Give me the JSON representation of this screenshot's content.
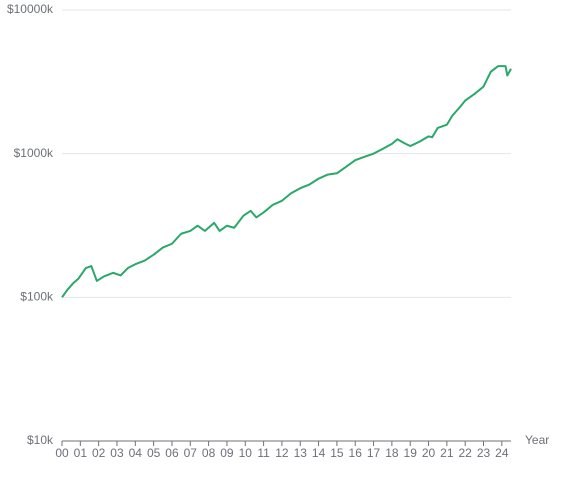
{
  "chart_data": {
    "type": "line",
    "x_label": "Year",
    "log_scale": true,
    "grid": true,
    "color": "#2aa86a",
    "xlim": [
      0,
      24.5
    ],
    "xticks": [
      {
        "value": 0,
        "label": "00"
      },
      {
        "value": 1,
        "label": "01"
      },
      {
        "value": 2,
        "label": "02"
      },
      {
        "value": 3,
        "label": "03"
      },
      {
        "value": 4,
        "label": "04"
      },
      {
        "value": 5,
        "label": "05"
      },
      {
        "value": 6,
        "label": "06"
      },
      {
        "value": 7,
        "label": "07"
      },
      {
        "value": 8,
        "label": "08"
      },
      {
        "value": 9,
        "label": "09"
      },
      {
        "value": 10,
        "label": "10"
      },
      {
        "value": 11,
        "label": "11"
      },
      {
        "value": 12,
        "label": "12"
      },
      {
        "value": 13,
        "label": "13"
      },
      {
        "value": 14,
        "label": "14"
      },
      {
        "value": 15,
        "label": "15"
      },
      {
        "value": 16,
        "label": "16"
      },
      {
        "value": 17,
        "label": "17"
      },
      {
        "value": 18,
        "label": "18"
      },
      {
        "value": 19,
        "label": "19"
      },
      {
        "value": 20,
        "label": "20"
      },
      {
        "value": 21,
        "label": "21"
      },
      {
        "value": 22,
        "label": "22"
      },
      {
        "value": 23,
        "label": "23"
      },
      {
        "value": 24,
        "label": "24"
      }
    ],
    "ylim": [
      10,
      10000
    ],
    "yticks": [
      {
        "value": 10,
        "label": "$10k"
      },
      {
        "value": 100,
        "label": "$100k"
      },
      {
        "value": 1000,
        "label": "$1000k"
      },
      {
        "value": 10000,
        "label": "$10000k"
      }
    ],
    "x": [
      0,
      0.3,
      0.6,
      0.9,
      1.3,
      1.6,
      1.9,
      2.3,
      2.8,
      3.2,
      3.6,
      4.0,
      4.5,
      5.0,
      5.5,
      6.0,
      6.5,
      7.0,
      7.4,
      7.8,
      8.3,
      8.6,
      9.0,
      9.4,
      9.9,
      10.3,
      10.6,
      11.0,
      11.5,
      12.0,
      12.5,
      13.0,
      13.5,
      14.0,
      14.5,
      15.0,
      15.5,
      16.0,
      16.5,
      17.0,
      17.5,
      18.0,
      18.3,
      18.7,
      19.0,
      19.5,
      20.0,
      20.2,
      20.5,
      21.0,
      21.3,
      21.7,
      22.0,
      22.5,
      23.0,
      23.4,
      23.8,
      24.2,
      24.3,
      24.5
    ],
    "values": [
      100,
      113,
      125,
      135,
      160,
      165,
      130,
      140,
      148,
      142,
      160,
      170,
      180,
      198,
      222,
      236,
      277,
      290,
      315,
      290,
      330,
      290,
      315,
      305,
      370,
      400,
      360,
      390,
      440,
      470,
      530,
      575,
      610,
      670,
      715,
      730,
      810,
      900,
      950,
      1000,
      1080,
      1170,
      1260,
      1180,
      1130,
      1210,
      1320,
      1300,
      1510,
      1590,
      1840,
      2100,
      2340,
      2600,
      2930,
      3720,
      4070,
      4070,
      3500,
      3900
    ]
  }
}
